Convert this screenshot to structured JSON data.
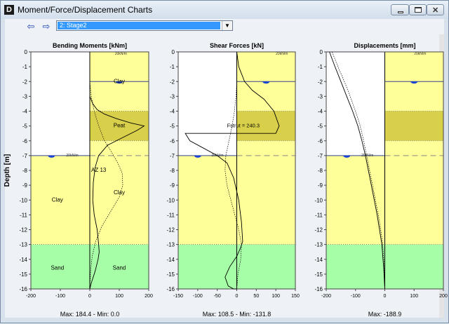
{
  "window": {
    "title": "Moment/Force/Displacement Charts",
    "app_icon_letter": "D"
  },
  "toolbar": {
    "stage_selected": "2: Stage2",
    "back_arrow": "⇦",
    "forward_arrow": "⇨"
  },
  "charts": {
    "depth_label": "Depth [m]",
    "depth_ticks": [
      0,
      -1,
      -2,
      -3,
      -4,
      -5,
      -6,
      -7,
      -8,
      -9,
      -10,
      -11,
      -12,
      -13,
      -14,
      -15,
      -16
    ],
    "soil_layers": [
      {
        "name": "Clay",
        "top": 0,
        "bottom": -4,
        "color": "#ffff99"
      },
      {
        "name": "Peat",
        "top": -4,
        "bottom": -6,
        "color": "#d8cf4a"
      },
      {
        "name": "Clay",
        "top": -6,
        "bottom": -13,
        "color": "#ffff99"
      },
      {
        "name": "Sand",
        "top": -13,
        "bottom": -16,
        "color": "#a6ffa6"
      }
    ],
    "colors": {
      "clay": "#ffff99",
      "peat": "#d8cf4a",
      "peat_light": "#e8e08a",
      "sand": "#a6ffa6",
      "line": "#000000",
      "water_marker": "#1a44d6"
    }
  },
  "chart_data": [
    {
      "type": "line",
      "title": "Bending Moments [kNm]",
      "ylabel": "Depth [m]",
      "xlim": [
        -200,
        200
      ],
      "ylim": [
        -16,
        0
      ],
      "xticks": [
        "-200",
        "-100",
        "0",
        "100",
        "200"
      ],
      "summary": "Max: 184.4 - Min: 0.0",
      "labels": {
        "left": [
          "Clay",
          "Sand"
        ],
        "right": [
          "Clay",
          "Peat",
          "Clay",
          "Sand"
        ],
        "wall": "AZ 13",
        "level_marker": "20kN/m"
      },
      "series": [
        {
          "style": "solid",
          "x": [
            0,
            0,
            0,
            0,
            10,
            25,
            50,
            90,
            140,
            184.4,
            160,
            110,
            60,
            30,
            18,
            12,
            10,
            15,
            25,
            30,
            32,
            28,
            18,
            5,
            0
          ],
          "y": [
            0,
            -1,
            -2,
            -3,
            -3.5,
            -3.9,
            -4.2,
            -4.5,
            -4.8,
            -5.0,
            -5.3,
            -5.8,
            -6.3,
            -7,
            -7.8,
            -8.8,
            -10,
            -11,
            -12,
            -13,
            -13.5,
            -14,
            -14.8,
            -15.6,
            -16
          ]
        },
        {
          "style": "dotted",
          "x": [
            0,
            0,
            0,
            5,
            15,
            30,
            50,
            75,
            95,
            110,
            112,
            100,
            70,
            40,
            20,
            8,
            2,
            0
          ],
          "y": [
            0,
            -1,
            -2,
            -3,
            -4,
            -5,
            -6,
            -6.8,
            -7.5,
            -8.2,
            -9,
            -9.8,
            -10.8,
            -11.8,
            -12.8,
            -13.8,
            -15,
            -16
          ]
        }
      ]
    },
    {
      "type": "line",
      "title": "Shear Forces [kN]",
      "xlim": [
        -150,
        150
      ],
      "ylim": [
        -16,
        0
      ],
      "xticks": [
        "-150",
        "-100",
        "-50",
        "0",
        "50",
        "100",
        "150"
      ],
      "summary": "Max: 108.5 - Min: -131.8",
      "annotation": "Fstrut = 240.3",
      "labels": {
        "level_marker": "20kN/m"
      },
      "series": [
        {
          "style": "solid",
          "x": [
            0,
            5,
            20,
            40,
            70,
            95,
            108.5,
            100,
            -131.8,
            -120,
            -85,
            -50,
            -25,
            -8,
            5,
            12,
            15,
            10,
            0,
            -18,
            -30,
            -22,
            -8,
            0
          ],
          "y": [
            0,
            -1,
            -2,
            -2.6,
            -3.2,
            -4,
            -5,
            -5.5,
            -5.5,
            -6,
            -6.5,
            -7,
            -7.5,
            -8.5,
            -10,
            -11.5,
            -12.8,
            -13.2,
            -13.8,
            -14.5,
            -15.2,
            -15.8,
            -16,
            -16
          ]
        },
        {
          "style": "dotted",
          "x": [
            0,
            0,
            -2,
            -6,
            -12,
            -20,
            -28,
            -30,
            -25,
            -15,
            -5,
            5,
            12,
            10,
            3,
            0
          ],
          "y": [
            0,
            -2,
            -3,
            -4,
            -5,
            -6,
            -7,
            -8,
            -9,
            -10,
            -11,
            -12,
            -13,
            -14,
            -15,
            -16
          ]
        }
      ]
    },
    {
      "type": "line",
      "title": "Displacements [mm]",
      "xlim": [
        -200,
        200
      ],
      "ylim": [
        -16,
        0
      ],
      "xticks": [
        "-200",
        "-100",
        "0",
        "100",
        "200"
      ],
      "summary": "Max: -188.9",
      "labels": {
        "level_marker": "20kN/m"
      },
      "series": [
        {
          "style": "solid",
          "x": [
            -188.9,
            -170,
            -150,
            -130,
            -110,
            -92,
            -78,
            -66,
            -56,
            -46,
            -36,
            -26,
            -18,
            -10,
            -4,
            0
          ],
          "y": [
            0,
            -1,
            -2,
            -3,
            -4,
            -5,
            -6,
            -7,
            -8,
            -9,
            -10,
            -11,
            -12,
            -13,
            -14.5,
            -16
          ]
        },
        {
          "style": "dotted",
          "x": [
            -180,
            -160,
            -138,
            -118,
            -100,
            -84,
            -72,
            -62,
            -52,
            -42,
            -32,
            -22,
            -14,
            -7,
            -2,
            0
          ],
          "y": [
            0,
            -1,
            -2,
            -3,
            -4,
            -5,
            -6,
            -7,
            -8,
            -9,
            -10,
            -11,
            -12,
            -13,
            -14.5,
            -16
          ]
        }
      ]
    }
  ]
}
